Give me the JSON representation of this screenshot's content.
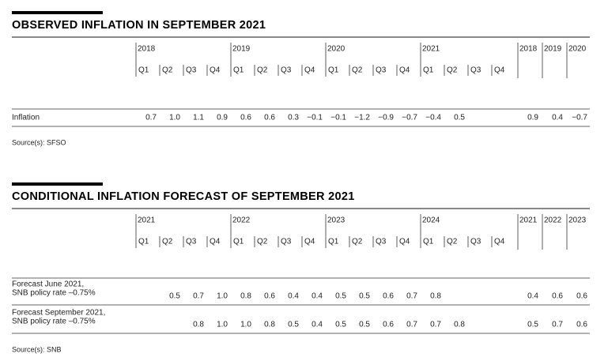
{
  "sections": [
    {
      "title": "OBSERVED INFLATION IN SEPTEMBER 2021",
      "years": [
        {
          "year": "2018",
          "quarters": [
            "Q1",
            "Q2",
            "Q3",
            "Q4"
          ]
        },
        {
          "year": "2019",
          "quarters": [
            "Q1",
            "Q2",
            "Q3",
            "Q4"
          ]
        },
        {
          "year": "2020",
          "quarters": [
            "Q1",
            "Q2",
            "Q3",
            "Q4"
          ]
        },
        {
          "year": "2021",
          "quarters": [
            "Q1",
            "Q2",
            "Q3",
            "Q4"
          ]
        }
      ],
      "annual_headers": [
        "2018",
        "2019",
        "2020"
      ],
      "rows": [
        {
          "label": [
            "Inflation"
          ],
          "quarterly": [
            "0.7",
            "1.0",
            "1.1",
            "0.9",
            "0.6",
            "0.6",
            "0.3",
            "−0.1",
            "−0.1",
            "−1.2",
            "−0.9",
            "−0.7",
            "−0.4",
            "0.5",
            null,
            null
          ],
          "annual": [
            "0.9",
            "0.4",
            "−0.7"
          ]
        }
      ],
      "source": "Source(s): SFSO"
    },
    {
      "title": "CONDITIONAL INFLATION FORECAST OF SEPTEMBER 2021",
      "years": [
        {
          "year": "2021",
          "quarters": [
            "Q1",
            "Q2",
            "Q3",
            "Q4"
          ]
        },
        {
          "year": "2022",
          "quarters": [
            "Q1",
            "Q2",
            "Q3",
            "Q4"
          ]
        },
        {
          "year": "2023",
          "quarters": [
            "Q1",
            "Q2",
            "Q3",
            "Q4"
          ]
        },
        {
          "year": "2024",
          "quarters": [
            "Q1",
            "Q2",
            "Q3",
            "Q4"
          ]
        }
      ],
      "annual_headers": [
        "2021",
        "2022",
        "2023"
      ],
      "rows": [
        {
          "label": [
            "Forecast June 2021,",
            "SNB policy rate –0.75%"
          ],
          "quarterly": [
            null,
            "0.5",
            "0.7",
            "1.0",
            "0.8",
            "0.6",
            "0.4",
            "0.4",
            "0.5",
            "0.5",
            "0.6",
            "0.7",
            "0.8",
            null,
            null,
            null
          ],
          "annual": [
            "0.4",
            "0.6",
            "0.6"
          ]
        },
        {
          "label": [
            "Forecast September 2021,",
            "SNB policy rate –0.75%"
          ],
          "quarterly": [
            null,
            null,
            "0.8",
            "1.0",
            "1.0",
            "0.8",
            "0.5",
            "0.4",
            "0.5",
            "0.5",
            "0.6",
            "0.7",
            "0.7",
            "0.8",
            null,
            null
          ],
          "annual": [
            "0.5",
            "0.7",
            "0.6"
          ]
        }
      ],
      "source": "Source(s): SNB"
    }
  ]
}
